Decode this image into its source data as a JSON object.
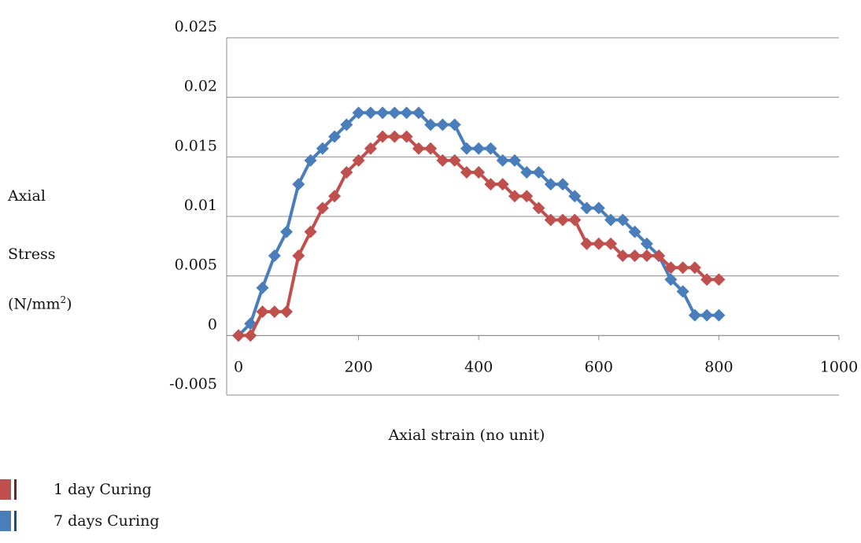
{
  "chart_data": {
    "type": "line",
    "xlabel": "Axial strain (no unit)",
    "ylabel_lines": [
      "Axial",
      "Stress",
      "(N/mm2)"
    ],
    "xlim": [
      0,
      1000
    ],
    "ylim": [
      -0.005,
      0.025
    ],
    "x_ticks": [
      "0",
      "200",
      "400",
      "600",
      "800",
      "1000"
    ],
    "y_ticks": [
      "0.025",
      "0.02",
      "0.015",
      "0.01",
      "0.005",
      "0",
      "-0.005"
    ],
    "grid": "horizontal",
    "legend_position": "bottom-left",
    "series": [
      {
        "name": "7 days Curing",
        "color": "#4a7ebb",
        "x": [
          0,
          20,
          40,
          60,
          80,
          100,
          120,
          140,
          160,
          180,
          200,
          220,
          240,
          260,
          280,
          300,
          320,
          340,
          360,
          380,
          400,
          420,
          440,
          460,
          480,
          500,
          520,
          540,
          560,
          580,
          600,
          620,
          640,
          660,
          680,
          700,
          720,
          740,
          760,
          780,
          800
        ],
        "y": [
          0,
          0.001,
          0.004,
          0.0067,
          0.0087,
          0.0127,
          0.0147,
          0.0157,
          0.0167,
          0.0177,
          0.0187,
          0.0187,
          0.0187,
          0.0187,
          0.0187,
          0.0187,
          0.0177,
          0.0177,
          0.0177,
          0.0157,
          0.0157,
          0.0157,
          0.0147,
          0.0147,
          0.0137,
          0.0137,
          0.0127,
          0.0127,
          0.0117,
          0.0107,
          0.0107,
          0.0097,
          0.0097,
          0.0087,
          0.0077,
          0.0067,
          0.0047,
          0.0037,
          0.0017,
          0.0017,
          0.0017
        ]
      },
      {
        "name": "1 day Curing",
        "color": "#c0504d",
        "x": [
          0,
          20,
          40,
          60,
          80,
          100,
          120,
          140,
          160,
          180,
          200,
          220,
          240,
          260,
          280,
          300,
          320,
          340,
          360,
          380,
          400,
          420,
          440,
          460,
          480,
          500,
          520,
          540,
          560,
          580,
          600,
          620,
          640,
          660,
          680,
          700,
          720,
          740,
          760,
          780,
          800
        ],
        "y": [
          0,
          0,
          0.002,
          0.002,
          0.002,
          0.0067,
          0.0087,
          0.0107,
          0.0117,
          0.0137,
          0.0147,
          0.0157,
          0.0167,
          0.0167,
          0.0167,
          0.0157,
          0.0157,
          0.0147,
          0.0147,
          0.0137,
          0.0137,
          0.0127,
          0.0127,
          0.0117,
          0.0117,
          0.0107,
          0.0097,
          0.0097,
          0.0097,
          0.0077,
          0.0077,
          0.0077,
          0.0067,
          0.0067,
          0.0067,
          0.0067,
          0.0057,
          0.0057,
          0.0057,
          0.0047,
          0.0047
        ]
      }
    ]
  },
  "legend": {
    "items": [
      {
        "label": "1 day Curing",
        "color": "#c0504d",
        "bar_color": "#5b2b2a"
      },
      {
        "label": "7 days Curing",
        "color": "#4a7ebb",
        "bar_color": "#274a70"
      }
    ]
  }
}
